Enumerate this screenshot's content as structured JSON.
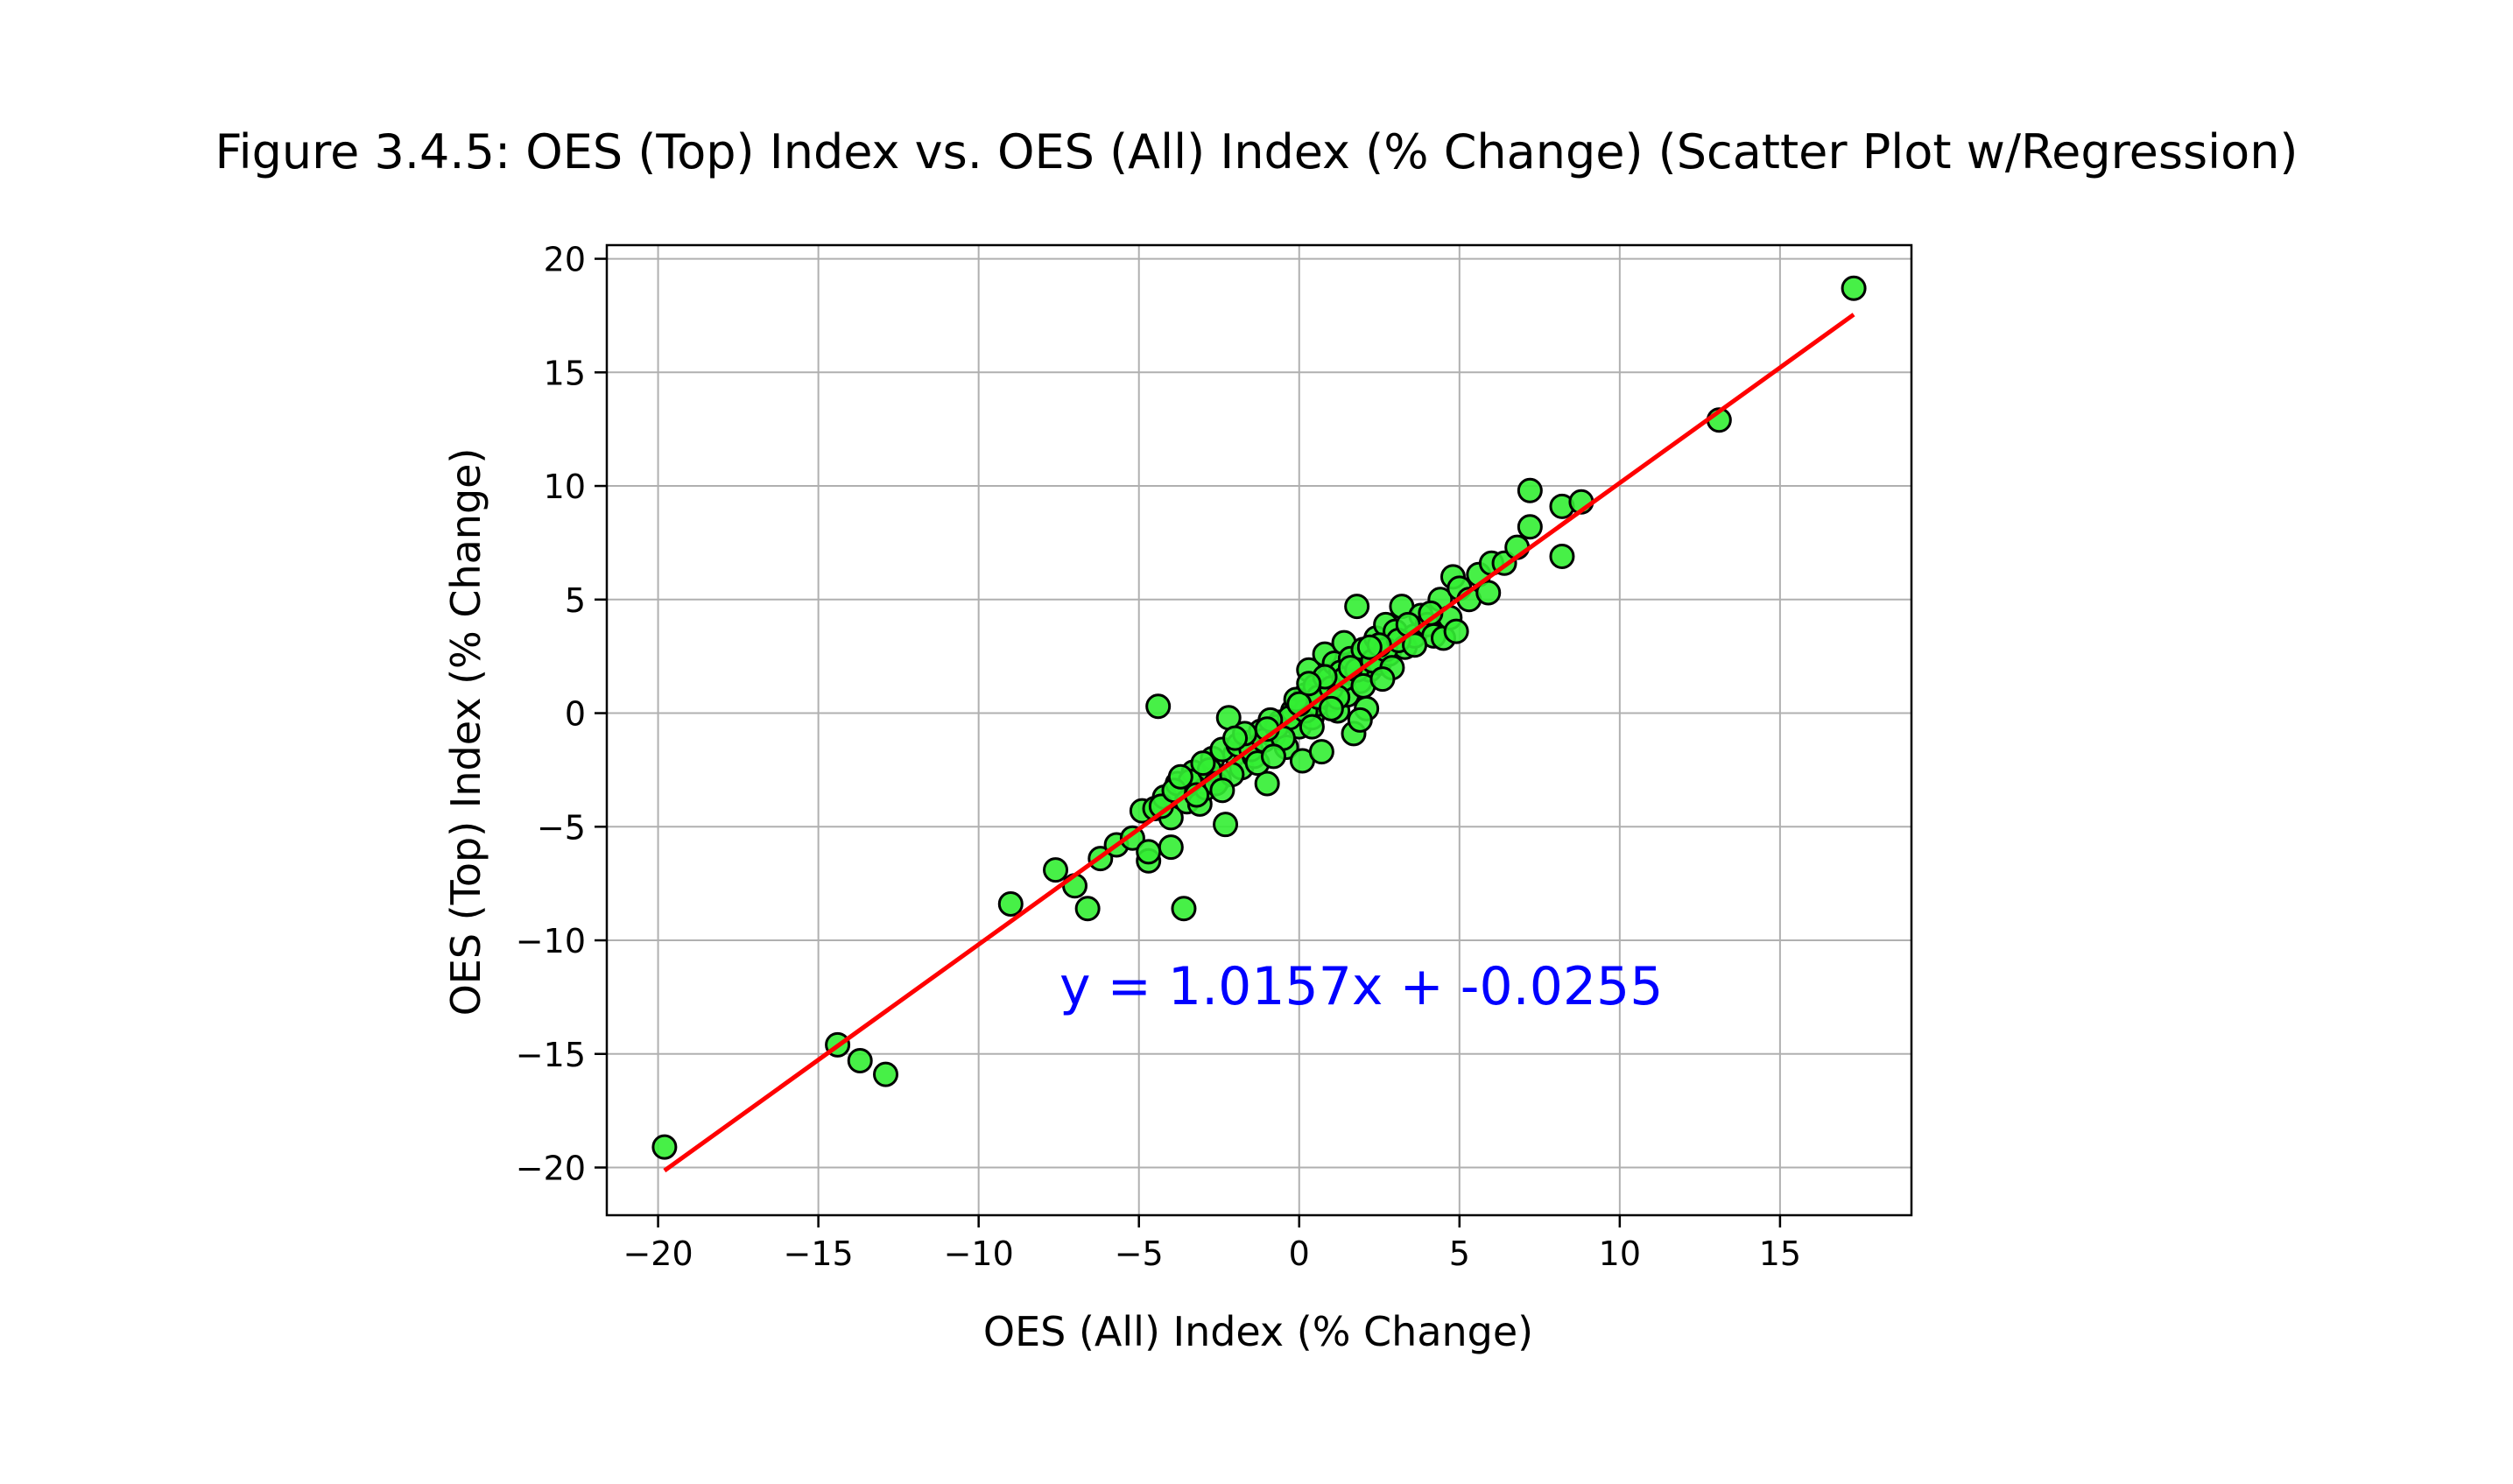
{
  "chart_data": {
    "type": "scatter",
    "title": "Figure 3.4.5: OES (Top) Index vs. OES (All) Index (% Change) (Scatter Plot w/Regression)",
    "xlabel": "OES (All) Index (% Change)",
    "ylabel": "OES (Top) Index (% Change)",
    "xlim": [
      -21.6,
      19.1
    ],
    "ylim": [
      -22.1,
      20.6
    ],
    "x_ticks": [
      -20,
      -15,
      -10,
      -5,
      0,
      5,
      10,
      15
    ],
    "y_ticks": [
      -20,
      -15,
      -10,
      -5,
      0,
      5,
      10,
      15,
      20
    ],
    "x_tick_labels": [
      "−20",
      "−15",
      "−10",
      "−5",
      "0",
      "5",
      "10",
      "15"
    ],
    "y_tick_labels": [
      "−20",
      "−15",
      "−10",
      "−5",
      "0",
      "5",
      "10",
      "15",
      "20"
    ],
    "grid": true,
    "marker_color": "#33ee33",
    "marker_edge_color": "#000000",
    "line_color": "#ff0000",
    "annotation_color": "#0000ff",
    "regression": {
      "slope": 1.0157,
      "intercept": -0.0255,
      "x_range": [
        -19.8,
        17.3
      ],
      "label": "y = 1.0157x + -0.0255"
    },
    "points": [
      [
        -19.8,
        -19.1
      ],
      [
        -14.4,
        -14.6
      ],
      [
        -13.7,
        -15.3
      ],
      [
        -12.9,
        -15.9
      ],
      [
        -9.0,
        -8.4
      ],
      [
        -7.6,
        -6.9
      ],
      [
        -7.0,
        -7.6
      ],
      [
        -6.6,
        -8.6
      ],
      [
        -6.2,
        -6.4
      ],
      [
        -5.7,
        -5.8
      ],
      [
        -5.2,
        -5.5
      ],
      [
        -4.9,
        -4.3
      ],
      [
        -4.7,
        -6.5
      ],
      [
        -4.7,
        -6.1
      ],
      [
        -4.4,
        0.3
      ],
      [
        -4.0,
        -5.9
      ],
      [
        -3.6,
        -8.6
      ],
      [
        -4.5,
        -4.2
      ],
      [
        -4.2,
        -3.7
      ],
      [
        -4.0,
        -4.6
      ],
      [
        -3.8,
        -3.1
      ],
      [
        -3.5,
        -3.9
      ],
      [
        -3.3,
        -2.6
      ],
      [
        -3.1,
        -4.0
      ],
      [
        -2.9,
        -3.3
      ],
      [
        -2.7,
        -2.0
      ],
      [
        -2.5,
        -2.9
      ],
      [
        -2.3,
        -4.9
      ],
      [
        -2.2,
        -0.2
      ],
      [
        -2.0,
        -1.8
      ],
      [
        -1.8,
        -2.4
      ],
      [
        -1.6,
        -1.3
      ],
      [
        -1.4,
        -1.9
      ],
      [
        -1.2,
        -0.8
      ],
      [
        -1.0,
        -3.1
      ],
      [
        -0.8,
        -1.0
      ],
      [
        -0.6,
        -0.4
      ],
      [
        -0.4,
        -1.5
      ],
      [
        -0.2,
        0.1
      ],
      [
        0.0,
        -0.6
      ],
      [
        0.1,
        -2.1
      ],
      [
        0.2,
        0.8
      ],
      [
        0.3,
        1.9
      ],
      [
        0.4,
        -0.2
      ],
      [
        0.5,
        1.2
      ],
      [
        0.6,
        0.4
      ],
      [
        0.7,
        -1.7
      ],
      [
        0.8,
        2.6
      ],
      [
        0.9,
        1.5
      ],
      [
        1.0,
        0.6
      ],
      [
        1.1,
        2.2
      ],
      [
        1.2,
        0.1
      ],
      [
        1.3,
        1.8
      ],
      [
        1.4,
        3.1
      ],
      [
        1.5,
        0.8
      ],
      [
        1.6,
        2.4
      ],
      [
        1.7,
        -0.9
      ],
      [
        1.8,
        4.7
      ],
      [
        1.9,
        1.4
      ],
      [
        2.0,
        2.8
      ],
      [
        2.1,
        0.2
      ],
      [
        2.2,
        1.9
      ],
      [
        2.4,
        3.3
      ],
      [
        2.5,
        2.2
      ],
      [
        2.7,
        3.9
      ],
      [
        2.8,
        2.6
      ],
      [
        3.0,
        3.6
      ],
      [
        3.2,
        4.7
      ],
      [
        3.3,
        2.9
      ],
      [
        3.6,
        3.4
      ],
      [
        3.8,
        4.3
      ],
      [
        4.0,
        3.9
      ],
      [
        4.2,
        3.4
      ],
      [
        4.4,
        5.0
      ],
      [
        4.5,
        3.3
      ],
      [
        4.7,
        4.2
      ],
      [
        4.8,
        6.0
      ],
      [
        4.9,
        3.6
      ],
      [
        5.0,
        5.5
      ],
      [
        5.3,
        5.0
      ],
      [
        5.6,
        6.1
      ],
      [
        5.9,
        5.3
      ],
      [
        6.0,
        6.6
      ],
      [
        6.4,
        6.6
      ],
      [
        6.8,
        7.3
      ],
      [
        7.2,
        8.2
      ],
      [
        7.2,
        9.8
      ],
      [
        8.2,
        6.9
      ],
      [
        8.2,
        9.1
      ],
      [
        8.8,
        9.3
      ],
      [
        13.1,
        12.9
      ],
      [
        17.3,
        18.7
      ],
      [
        -3.4,
        -3.0
      ],
      [
        -2.8,
        -2.5
      ],
      [
        -2.4,
        -1.6
      ],
      [
        -1.9,
        -1.4
      ],
      [
        -1.5,
        -1.6
      ],
      [
        -1.1,
        -1.2
      ],
      [
        -0.7,
        -0.6
      ],
      [
        -0.3,
        -0.2
      ],
      [
        0.2,
        0.1
      ],
      [
        0.6,
        0.7
      ],
      [
        1.0,
        1.1
      ],
      [
        1.4,
        1.5
      ],
      [
        1.8,
        1.9
      ],
      [
        2.3,
        2.3
      ],
      [
        2.7,
        2.8
      ],
      [
        3.1,
        3.2
      ],
      [
        -3.0,
        -2.2
      ],
      [
        -2.6,
        -3.1
      ],
      [
        -2.1,
        -2.7
      ],
      [
        -1.7,
        -0.9
      ],
      [
        -1.3,
        -2.2
      ],
      [
        -0.9,
        -0.3
      ],
      [
        -0.5,
        -1.1
      ],
      [
        -0.1,
        0.6
      ],
      [
        0.4,
        -0.6
      ],
      [
        0.8,
        1.6
      ],
      [
        1.2,
        0.7
      ],
      [
        1.6,
        2.0
      ],
      [
        2.0,
        1.2
      ],
      [
        2.5,
        3.0
      ],
      [
        2.9,
        2.0
      ],
      [
        3.4,
        3.9
      ],
      [
        -4.3,
        -4.1
      ],
      [
        -3.9,
        -3.4
      ],
      [
        -3.7,
        -2.8
      ],
      [
        -3.2,
        -3.6
      ],
      [
        -2.0,
        -1.1
      ],
      [
        -1.0,
        -0.7
      ],
      [
        0.0,
        0.4
      ],
      [
        1.0,
        0.2
      ],
      [
        2.2,
        2.9
      ],
      [
        3.6,
        3.0
      ],
      [
        1.9,
        -0.3
      ],
      [
        0.3,
        1.3
      ],
      [
        -0.8,
        -1.9
      ],
      [
        2.6,
        1.5
      ],
      [
        -2.4,
        -3.4
      ],
      [
        4.1,
        4.4
      ]
    ]
  }
}
